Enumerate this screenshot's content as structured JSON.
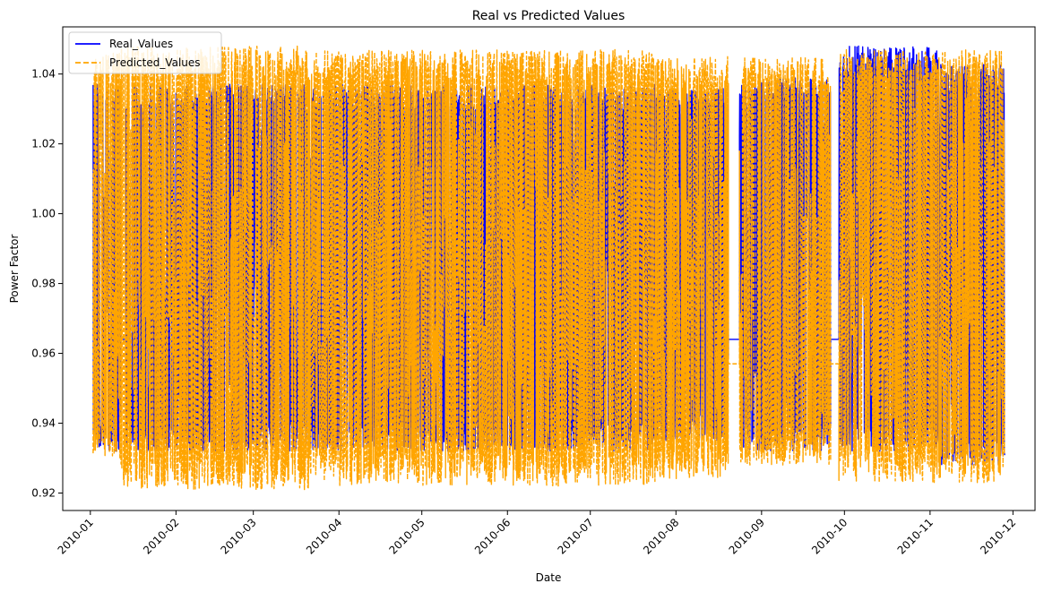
{
  "chart_data": {
    "type": "line",
    "title": "Real vs Predicted Values",
    "xlabel": "Date",
    "ylabel": "Power Factor",
    "xlim": [
      "2009-12-22",
      "2010-12-09"
    ],
    "ylim": [
      0.915,
      1.0535
    ],
    "x_ticks": [
      "2010-01",
      "2010-02",
      "2010-03",
      "2010-04",
      "2010-05",
      "2010-06",
      "2010-07",
      "2010-08",
      "2010-09",
      "2010-10",
      "2010-11",
      "2010-12"
    ],
    "y_ticks": [
      "0.92",
      "0.94",
      "0.96",
      "0.98",
      "1.00",
      "1.02",
      "1.04"
    ],
    "legend_position": "top-left",
    "grid": false,
    "series": [
      {
        "name": "Real_Values",
        "color": "#0000ff",
        "style": "solid",
        "x_start": "2010-01-02",
        "x_end": "2010-11-28",
        "segments": [
          {
            "from": "2010-01-02",
            "to": "2010-01-12",
            "low": 0.932,
            "high": 1.037
          },
          {
            "from": "2010-01-12",
            "to": "2010-01-14",
            "low": 0.964,
            "high": 0.964
          },
          {
            "from": "2010-01-14",
            "to": "2010-03-21",
            "low": 0.932,
            "high": 1.037
          },
          {
            "from": "2010-03-21",
            "to": "2010-07-25",
            "low": 0.932,
            "high": 1.037
          },
          {
            "from": "2010-07-25",
            "to": "2010-08-20",
            "low": 0.935,
            "high": 1.036
          },
          {
            "from": "2010-08-20",
            "to": "2010-08-24",
            "low": 0.964,
            "high": 0.964
          },
          {
            "from": "2010-08-24",
            "to": "2010-09-26",
            "low": 0.932,
            "high": 1.039
          },
          {
            "from": "2010-09-26",
            "to": "2010-09-29",
            "low": 0.964,
            "high": 0.964
          },
          {
            "from": "2010-09-29",
            "to": "2010-11-04",
            "low": 0.932,
            "high": 1.048
          },
          {
            "from": "2010-11-04",
            "to": "2010-11-28",
            "low": 0.928,
            "high": 1.043
          }
        ]
      },
      {
        "name": "Predicted_Values",
        "color": "#ffa500",
        "style": "dashed",
        "x_start": "2010-01-02",
        "x_end": "2010-11-28",
        "segments": [
          {
            "from": "2010-01-02",
            "to": "2010-01-12",
            "low": 0.93,
            "high": 1.046
          },
          {
            "from": "2010-01-12",
            "to": "2010-03-21",
            "low": 0.921,
            "high": 1.048
          },
          {
            "from": "2010-03-21",
            "to": "2010-07-25",
            "low": 0.922,
            "high": 1.047
          },
          {
            "from": "2010-07-25",
            "to": "2010-08-20",
            "low": 0.924,
            "high": 1.045
          },
          {
            "from": "2010-08-20",
            "to": "2010-08-24",
            "low": 0.957,
            "high": 0.957
          },
          {
            "from": "2010-08-24",
            "to": "2010-09-26",
            "low": 0.928,
            "high": 1.045
          },
          {
            "from": "2010-09-26",
            "to": "2010-09-29",
            "low": 0.957,
            "high": 0.957
          },
          {
            "from": "2010-09-29",
            "to": "2010-11-28",
            "low": 0.923,
            "high": 1.047
          }
        ]
      }
    ]
  }
}
